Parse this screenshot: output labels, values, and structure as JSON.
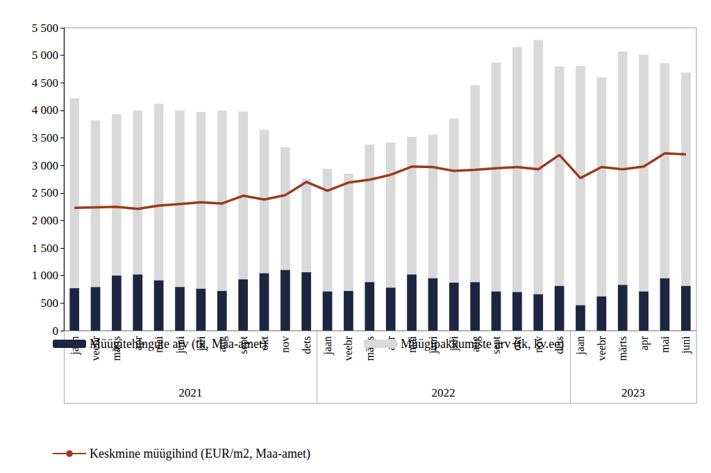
{
  "chart_data": {
    "type": "bar",
    "categories": [
      "jaan",
      "veebr",
      "märts",
      "apr",
      "mai",
      "juni",
      "juli",
      "aug",
      "sept",
      "okt",
      "nov",
      "dets",
      "jaan",
      "veebr",
      "märts",
      "apr",
      "mai",
      "juni",
      "juli",
      "aug",
      "sept",
      "okt",
      "nov",
      "dets",
      "jaan",
      "veebr",
      "märts",
      "apr",
      "mai",
      "juni"
    ],
    "category_groups": [
      {
        "label": "2021",
        "count": 12
      },
      {
        "label": "2022",
        "count": 12
      },
      {
        "label": "2023",
        "count": 6
      }
    ],
    "series": [
      {
        "name": "Müügitehingute arv (tk, Maa-amet)",
        "type": "bar",
        "color": "#1c2640",
        "values": [
          770,
          790,
          1000,
          1020,
          910,
          790,
          760,
          720,
          930,
          1040,
          1100,
          1060,
          710,
          720,
          880,
          780,
          1020,
          950,
          870,
          880,
          710,
          700,
          660,
          810,
          460,
          620,
          830,
          710,
          950,
          810
        ]
      },
      {
        "name": "Müügipakkumiste arv (tk, kv.ee)",
        "type": "bar",
        "color": "#d9d9d9",
        "values": [
          4220,
          3820,
          3930,
          4000,
          4120,
          4000,
          3970,
          4000,
          3980,
          3650,
          3330,
          2760,
          2940,
          2850,
          3380,
          3420,
          3520,
          3560,
          3850,
          4460,
          4870,
          5150,
          5280,
          4800,
          4810,
          4600,
          5070,
          5010,
          4860,
          4690
        ]
      },
      {
        "name": "Keskmine müügihind (EUR/m2, Maa-amet)",
        "type": "line",
        "color": "#9c3a1b",
        "marker": "none",
        "line_style": "solid",
        "values": [
          2230,
          2240,
          2250,
          2210,
          2270,
          2300,
          2330,
          2310,
          2450,
          2380,
          2460,
          2700,
          2540,
          2690,
          2740,
          2830,
          2980,
          2970,
          2900,
          2920,
          2950,
          2970,
          2930,
          3190,
          2770,
          2970,
          2930,
          2980,
          3220,
          3200
        ]
      }
    ],
    "ylim": [
      0,
      5500
    ],
    "yticks": [
      0,
      500,
      {
        "value": 1000,
        "label": "1 000"
      },
      {
        "value": 1500,
        "label": "1 500"
      },
      {
        "value": 2000,
        "label": "2 000"
      },
      {
        "value": 2500,
        "label": "2 500"
      },
      {
        "value": 3000,
        "label": "3 000"
      },
      {
        "value": 3500,
        "label": "3 500"
      },
      {
        "value": 4000,
        "label": "4 000"
      },
      {
        "value": 4500,
        "label": "4 500"
      },
      {
        "value": 5000,
        "label": "5 000"
      },
      {
        "value": 5500,
        "label": "5 500"
      }
    ],
    "grid": false,
    "legend": "bottom"
  }
}
